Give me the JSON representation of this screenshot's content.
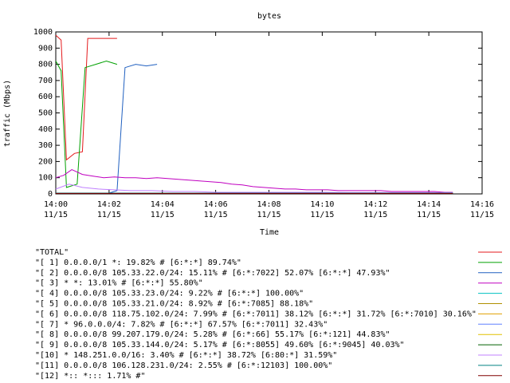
{
  "chart_data": {
    "type": "line",
    "title": "bytes",
    "xlabel": "Time",
    "ylabel": "traffic (Mbps)",
    "ylim": [
      0,
      1000
    ],
    "xlim": [
      "14:00",
      "14:16"
    ],
    "yticks": [
      "0",
      "100",
      "200",
      "300",
      "400",
      "500",
      "600",
      "700",
      "800",
      "900",
      "1000"
    ],
    "xticks": [
      {
        "time": "14:00",
        "date": "11/15"
      },
      {
        "time": "14:02",
        "date": "11/15"
      },
      {
        "time": "14:04",
        "date": "11/15"
      },
      {
        "time": "14:06",
        "date": "11/15"
      },
      {
        "time": "14:08",
        "date": "11/15"
      },
      {
        "time": "14:10",
        "date": "11/15"
      },
      {
        "time": "14:12",
        "date": "11/15"
      },
      {
        "time": "14:14",
        "date": "11/15"
      },
      {
        "time": "14:16",
        "date": "11/15"
      }
    ],
    "grid": false,
    "legend_position": "bottom",
    "series": [
      {
        "name": "\"TOTAL\"",
        "color": "#e41a1c",
        "values": [
          [
            0,
            980
          ],
          [
            0.2,
            950
          ],
          [
            0.4,
            210
          ],
          [
            0.7,
            250
          ],
          [
            1.0,
            260
          ],
          [
            1.2,
            960
          ],
          [
            1.6,
            960
          ],
          [
            2.0,
            960
          ],
          [
            2.3,
            960
          ]
        ]
      },
      {
        "name": "\"[ 1] 0.0.0.0/1 *: 19.82% # [6:*:*] 89.74%\"",
        "color": "#00a000",
        "values": [
          [
            0,
            820
          ],
          [
            0.2,
            760
          ],
          [
            0.4,
            40
          ],
          [
            0.8,
            60
          ],
          [
            1.1,
            780
          ],
          [
            1.5,
            800
          ],
          [
            1.9,
            820
          ],
          [
            2.3,
            800
          ]
        ]
      },
      {
        "name": "\"[ 2] 0.0.0.0/8 105.33.22.0/24: 15.11% # [6:*:7022] 52.07% [6:*:*] 47.93%\"",
        "color": "#2060c0",
        "values": [
          [
            0,
            5
          ],
          [
            2.0,
            5
          ],
          [
            2.3,
            20
          ],
          [
            2.6,
            780
          ],
          [
            3.0,
            800
          ],
          [
            3.4,
            790
          ],
          [
            3.8,
            800
          ]
        ]
      },
      {
        "name": "\"[ 3] * *: 13.01% # [6:*:*] 55.80%\"",
        "color": "#c000c0",
        "values": [
          [
            0,
            100
          ],
          [
            0.3,
            115
          ],
          [
            0.6,
            150
          ],
          [
            1.0,
            120
          ],
          [
            1.4,
            110
          ],
          [
            1.8,
            100
          ],
          [
            2.2,
            105
          ],
          [
            2.6,
            100
          ],
          [
            3.0,
            100
          ],
          [
            3.4,
            95
          ],
          [
            3.8,
            100
          ],
          [
            4.2,
            95
          ],
          [
            4.6,
            90
          ],
          [
            5.0,
            85
          ],
          [
            5.4,
            80
          ],
          [
            5.8,
            75
          ],
          [
            6.2,
            70
          ],
          [
            6.6,
            60
          ],
          [
            7.0,
            55
          ],
          [
            7.4,
            45
          ],
          [
            7.8,
            40
          ],
          [
            8.2,
            35
          ],
          [
            8.6,
            30
          ],
          [
            9.0,
            30
          ],
          [
            9.4,
            25
          ],
          [
            9.8,
            25
          ],
          [
            10.2,
            25
          ],
          [
            10.6,
            20
          ],
          [
            11.0,
            20
          ],
          [
            11.4,
            20
          ],
          [
            11.8,
            20
          ],
          [
            12.2,
            20
          ],
          [
            12.6,
            15
          ],
          [
            13.0,
            15
          ],
          [
            13.4,
            15
          ],
          [
            13.8,
            15
          ],
          [
            14.2,
            15
          ],
          [
            14.6,
            10
          ],
          [
            14.9,
            10
          ]
        ]
      },
      {
        "name": "\"[ 4] 0.0.0.0/8 105.33.23.0/24: 9.22% # [6:*:*] 100.00%\"",
        "color": "#00c0c0",
        "values": [
          [
            0,
            5
          ],
          [
            14.9,
            5
          ]
        ]
      },
      {
        "name": "\"[ 5] 0.0.0.0/8 105.33.21.0/24: 8.92% # [6:*:7085] 88.18%\"",
        "color": "#b09000",
        "values": [
          [
            0,
            5
          ],
          [
            14.9,
            5
          ]
        ]
      },
      {
        "name": "\"[ 6] 0.0.0.0/8 118.75.102.0/24: 7.99% # [6:*:7011] 38.12% [6:*:*] 31.72% [6:*:7010] 30.16%\"",
        "color": "#e0a000",
        "values": [
          [
            0,
            5
          ],
          [
            14.9,
            5
          ]
        ]
      },
      {
        "name": "\"[ 7] * 96.0.0.0/4: 7.82% # [6:*:*] 67.57% [6:*:7011] 32.43%\"",
        "color": "#6080ff",
        "values": [
          [
            0,
            5
          ],
          [
            14.9,
            5
          ]
        ]
      },
      {
        "name": "\"[ 8] 0.0.0.0/8 99.207.179.0/24: 5.28% # [6:*:66] 55.17% [6:*:121] 44.83%\"",
        "color": "#e0c000",
        "values": [
          [
            0,
            5
          ],
          [
            14.9,
            5
          ]
        ]
      },
      {
        "name": "\"[ 9] 0.0.0.0/8 105.33.144.0/24: 5.17% # [6:*:8055] 49.60% [6:*:9045] 40.03%\"",
        "color": "#006000",
        "values": [
          [
            0,
            5
          ],
          [
            14.9,
            5
          ]
        ]
      },
      {
        "name": "\"[10] * 148.251.0.0/16: 3.40% # [6:*:*] 38.72% [6:80:*] 31.59%\"",
        "color": "#c080ff",
        "values": [
          [
            0,
            30
          ],
          [
            0.5,
            60
          ],
          [
            1.0,
            40
          ],
          [
            1.6,
            30
          ],
          [
            2.2,
            25
          ],
          [
            2.8,
            20
          ],
          [
            3.6,
            20
          ],
          [
            4.4,
            15
          ],
          [
            5.2,
            15
          ],
          [
            6.0,
            10
          ],
          [
            7.0,
            10
          ],
          [
            8.0,
            10
          ],
          [
            9.0,
            10
          ],
          [
            10.0,
            10
          ],
          [
            11.0,
            8
          ],
          [
            12.0,
            8
          ],
          [
            13.0,
            8
          ],
          [
            14.0,
            8
          ],
          [
            14.9,
            8
          ]
        ]
      },
      {
        "name": "\"[11] 0.0.0.0/8 106.128.231.0/24: 2.55% # [6:*:12103] 100.00%\"",
        "color": "#008080",
        "values": [
          [
            0,
            5
          ],
          [
            14.9,
            5
          ]
        ]
      },
      {
        "name": "\"[12] *:: *::: 1.71% #\"",
        "color": "#800000",
        "values": [
          [
            0,
            3
          ],
          [
            14.9,
            3
          ]
        ]
      }
    ]
  }
}
